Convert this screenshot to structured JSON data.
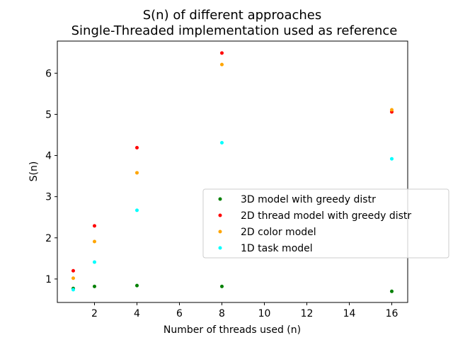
{
  "chart_data": {
    "type": "scatter",
    "title": "S(n) of different approaches",
    "subtitle": "Single-Threaded implementation used as reference",
    "xlabel": "Number of threads used (n)",
    "ylabel": "S(n)",
    "xlim": [
      0.25,
      16.75
    ],
    "ylim": [
      0.43,
      6.78
    ],
    "xticks": [
      2,
      4,
      6,
      8,
      10,
      12,
      14,
      16
    ],
    "yticks": [
      1,
      2,
      3,
      4,
      5,
      6
    ],
    "grid": false,
    "legend_position": "center-right",
    "series": [
      {
        "name": "3D model with greedy distr",
        "color": "#008000",
        "x": [
          1,
          2,
          4,
          8,
          16
        ],
        "y": [
          0.77,
          0.82,
          0.84,
          0.82,
          0.7
        ]
      },
      {
        "name": "2D thread model with greedy distr",
        "color": "#ff0000",
        "x": [
          1,
          2,
          4,
          8,
          16
        ],
        "y": [
          1.2,
          2.29,
          4.19,
          6.49,
          5.06
        ]
      },
      {
        "name": "2D color model",
        "color": "#ffa500",
        "x": [
          1,
          2,
          4,
          8,
          16
        ],
        "y": [
          1.02,
          1.91,
          3.58,
          6.21,
          5.11
        ]
      },
      {
        "name": "1D task model",
        "color": "#00ffff",
        "x": [
          1,
          2,
          4,
          8,
          16
        ],
        "y": [
          0.74,
          1.41,
          2.67,
          4.31,
          3.92
        ]
      }
    ]
  }
}
